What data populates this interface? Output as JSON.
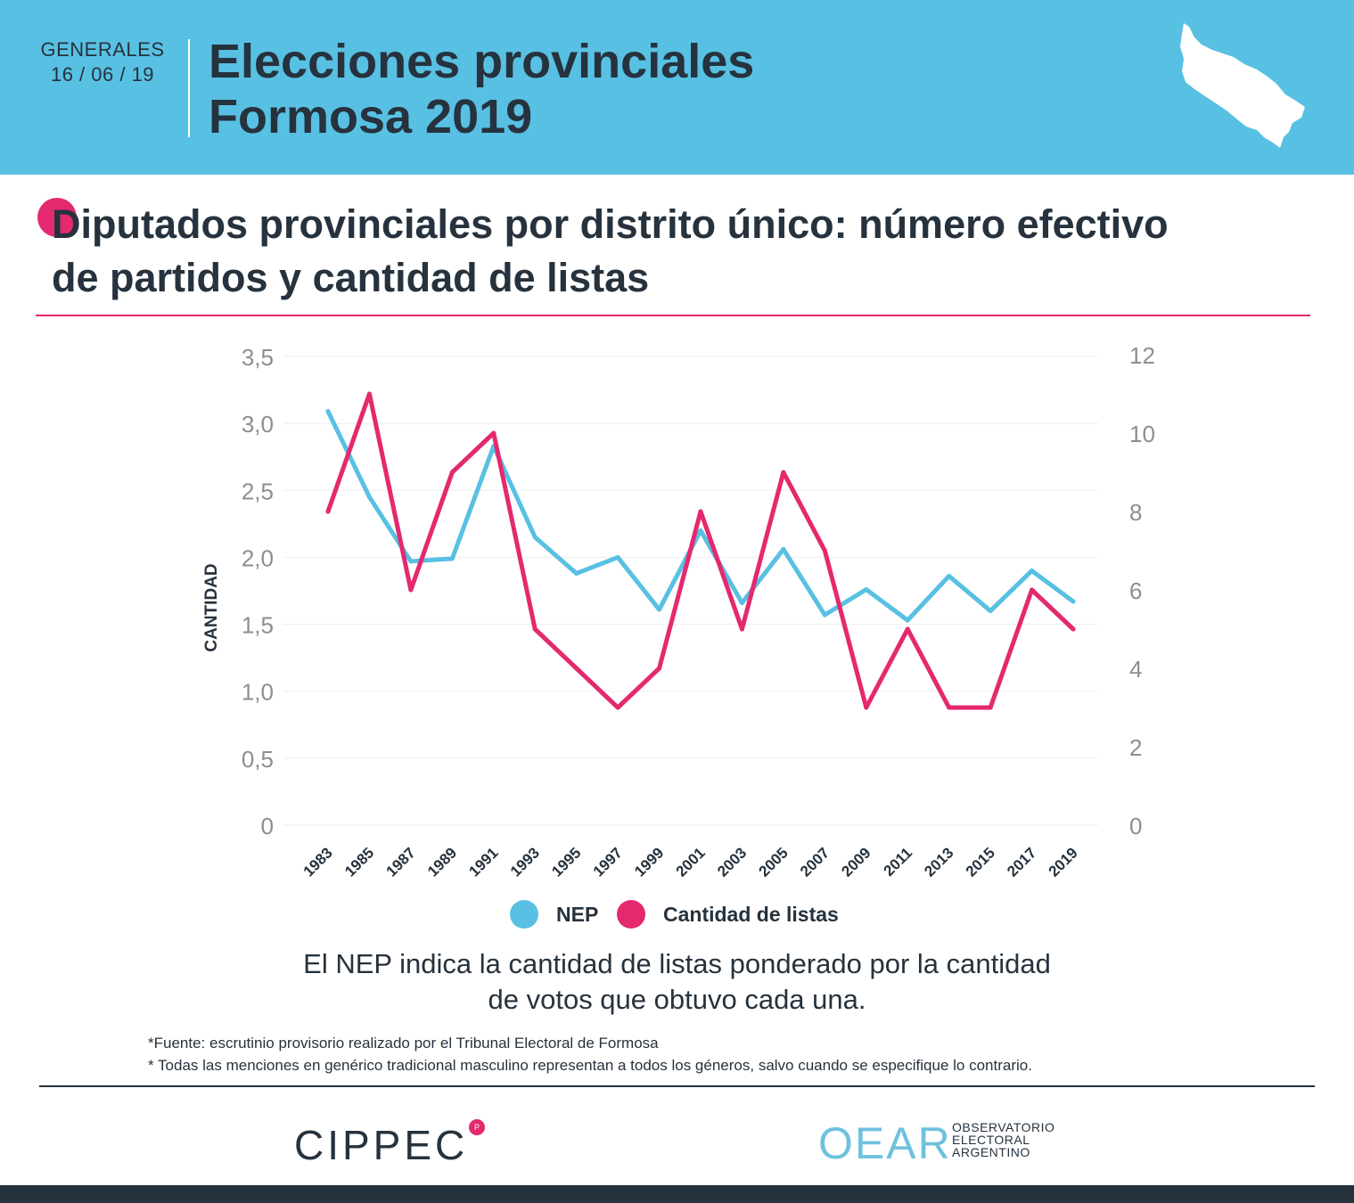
{
  "header": {
    "kicker_line1": "GENERALES",
    "kicker_line2": "16 / 06 / 19",
    "title_line1": "Elecciones provinciales",
    "title_line2": "Formosa 2019",
    "bg_color": "#58c0e3",
    "map_icon": "formosa-map-icon"
  },
  "subtitle": {
    "line1": "Diputados provinciales por distrito único: número efectivo",
    "line2": "de partidos y cantidad de listas",
    "accent_color": "#e4296f"
  },
  "chart_data": {
    "type": "line",
    "title": "Diputados provinciales por distrito único: número efectivo de partidos y cantidad de listas",
    "ylabel": "CANTIDAD",
    "xlabel": "",
    "categories": [
      "1983",
      "1985",
      "1987",
      "1989",
      "1991",
      "1993",
      "1995",
      "1997",
      "1999",
      "2001",
      "2003",
      "2005",
      "2007",
      "2009",
      "2011",
      "2013",
      "2015",
      "2017",
      "2019"
    ],
    "y_left": {
      "ylim": [
        0,
        3.5
      ],
      "ticks": [
        "0",
        "0,5",
        "1,0",
        "1,5",
        "2,0",
        "2,5",
        "3,0",
        "3,5"
      ]
    },
    "y_right": {
      "ylim": [
        0,
        12
      ],
      "ticks": [
        "0",
        "2",
        "4",
        "6",
        "8",
        "10",
        "12"
      ]
    },
    "grid": true,
    "legend_position": "bottom",
    "series": [
      {
        "name": "NEP",
        "axis": "left",
        "color": "#58c0e3",
        "values": [
          3.09,
          2.45,
          1.97,
          1.99,
          2.83,
          2.15,
          1.88,
          2.0,
          1.61,
          2.2,
          1.66,
          2.06,
          1.57,
          1.76,
          1.53,
          1.86,
          1.6,
          1.9,
          1.67
        ]
      },
      {
        "name": "Cantidad de listas",
        "axis": "right",
        "color": "#e4296f",
        "values": [
          8,
          11,
          6,
          9,
          10,
          5,
          4,
          3,
          4,
          8,
          5,
          9,
          7,
          3,
          5,
          3,
          3,
          6,
          5
        ]
      }
    ]
  },
  "note": {
    "line1": "El NEP indica la cantidad de listas ponderado por la cantidad",
    "line2": "de votos que obtuvo cada una."
  },
  "footnotes": [
    "*Fuente: escrutinio provisorio realizado por el Tribunal Electoral de Formosa",
    "* Todas las menciones en genérico tradicional masculino representan a todos los géneros, salvo cuando se especifique lo contrario."
  ],
  "logos": {
    "cippec": "CIPPEC",
    "cippec_badge": "P",
    "oear": "OEAR",
    "oear_text_1": "OBSERVATORIO",
    "oear_text_2": "ELECTORAL",
    "oear_text_3": "ARGENTINO"
  }
}
